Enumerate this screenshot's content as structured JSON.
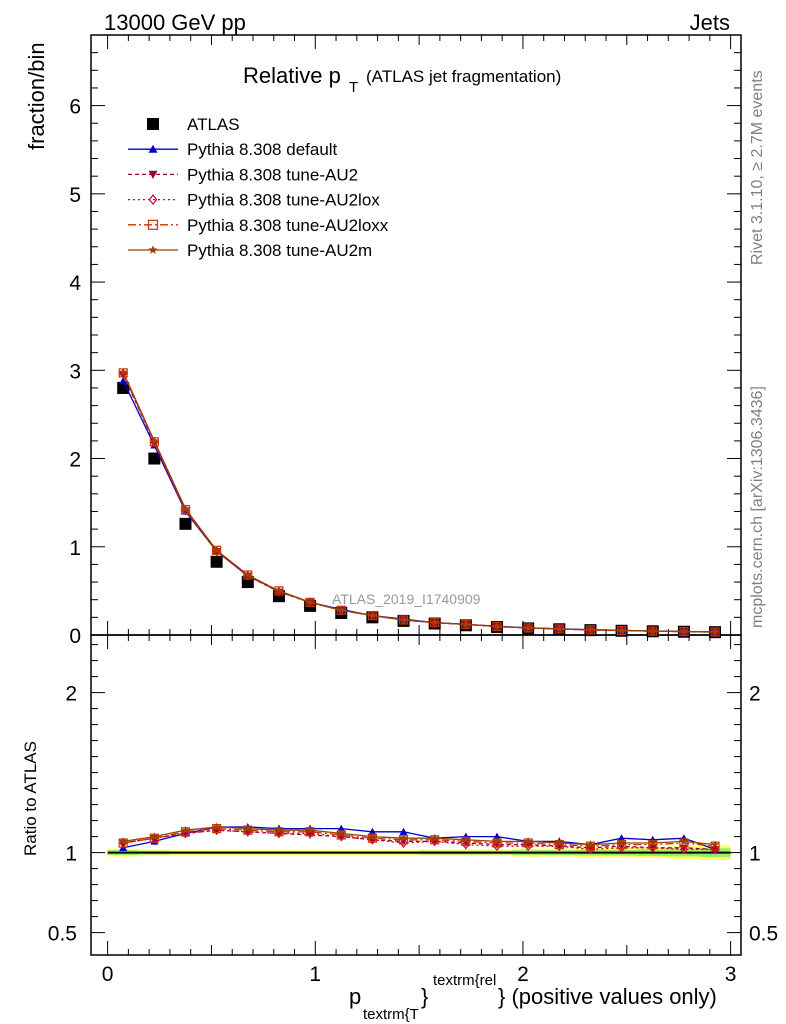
{
  "header": {
    "energy": "13000 GeV pp",
    "category": "Jets",
    "title_main": "Relative p",
    "title_sub": "T",
    "title_paren": "(ATLAS jet fragmentation)",
    "analysis_id": "ATLAS_2019_I1740909",
    "rivet_label": "Rivet 3.1.10, ≥ 2.7M events",
    "mcplots_label": "mcplots.cern.ch [arXiv:1306.3436]"
  },
  "axes": {
    "ylabel_main": "fraction/bin",
    "ylabel_ratio": "Ratio to ATLAS",
    "xlabel_p": "p",
    "xlabel_sub": "textrm{T",
    "xlabel_brace": "}",
    "xlabel_sup": "textrm{rel",
    "xlabel_tail": "} (positive values only)"
  },
  "legend": [
    {
      "label": "ATLAS",
      "color": "#000000",
      "marker": "square",
      "dash": ""
    },
    {
      "label": "Pythia 8.308 default",
      "color": "#0000cc",
      "marker": "triangle-up",
      "dash": ""
    },
    {
      "label": "Pythia 8.308 tune-AU2",
      "color": "#990033",
      "marker": "triangle-down",
      "dash": "4,3"
    },
    {
      "label": "Pythia 8.308 tune-AU2lox",
      "color": "#cc0033",
      "marker": "diamond-open",
      "dash": "2,3"
    },
    {
      "label": "Pythia 8.308 tune-AU2loxx",
      "color": "#cc3300",
      "marker": "square-open",
      "dash": "8,3,2,3"
    },
    {
      "label": "Pythia 8.308 tune-AU2m",
      "color": "#994400",
      "marker": "star",
      "dash": ""
    }
  ],
  "chart_data": [
    {
      "type": "line",
      "panel": "main",
      "xlim": [
        -0.08,
        3.05
      ],
      "ylim": [
        0,
        6.8
      ],
      "x_ticks": [
        0,
        1,
        2,
        3
      ],
      "y_ticks": [
        0,
        1,
        2,
        3,
        4,
        5,
        6
      ],
      "x": [
        0.075,
        0.225,
        0.375,
        0.525,
        0.675,
        0.825,
        0.975,
        1.125,
        1.275,
        1.425,
        1.575,
        1.725,
        1.875,
        2.025,
        2.175,
        2.325,
        2.475,
        2.625,
        2.775,
        2.925
      ],
      "series": [
        {
          "name": "ATLAS",
          "values": [
            2.8,
            2.0,
            1.26,
            0.83,
            0.6,
            0.44,
            0.33,
            0.25,
            0.2,
            0.16,
            0.13,
            0.11,
            0.09,
            0.075,
            0.065,
            0.055,
            0.048,
            0.042,
            0.037,
            0.032
          ]
        },
        {
          "name": "Pythia 8.308 default",
          "values": [
            2.88,
            2.15,
            1.4,
            0.95,
            0.67,
            0.5,
            0.37,
            0.29,
            0.22,
            0.18,
            0.14,
            0.12,
            0.1,
            0.08,
            0.07,
            0.06,
            0.053,
            0.045,
            0.04,
            0.034
          ]
        },
        {
          "name": "Pythia 8.308 tune-AU2",
          "values": [
            2.95,
            2.18,
            1.41,
            0.95,
            0.67,
            0.49,
            0.37,
            0.28,
            0.22,
            0.17,
            0.14,
            0.12,
            0.095,
            0.079,
            0.068,
            0.057,
            0.05,
            0.044,
            0.038,
            0.033
          ]
        },
        {
          "name": "Pythia 8.308 tune-AU2lox",
          "values": [
            2.96,
            2.18,
            1.41,
            0.95,
            0.67,
            0.49,
            0.37,
            0.28,
            0.22,
            0.17,
            0.14,
            0.12,
            0.095,
            0.079,
            0.068,
            0.057,
            0.05,
            0.044,
            0.038,
            0.033
          ]
        },
        {
          "name": "Pythia 8.308 tune-AU2loxx",
          "values": [
            2.97,
            2.19,
            1.42,
            0.96,
            0.68,
            0.5,
            0.37,
            0.28,
            0.22,
            0.17,
            0.14,
            0.12,
            0.096,
            0.08,
            0.069,
            0.058,
            0.051,
            0.044,
            0.039,
            0.034
          ]
        },
        {
          "name": "Pythia 8.308 tune-AU2m",
          "values": [
            2.98,
            2.2,
            1.43,
            0.96,
            0.68,
            0.5,
            0.37,
            0.28,
            0.22,
            0.17,
            0.14,
            0.12,
            0.096,
            0.08,
            0.069,
            0.058,
            0.051,
            0.044,
            0.039,
            0.034
          ]
        }
      ]
    },
    {
      "type": "line",
      "panel": "ratio",
      "xlim": [
        -0.08,
        3.05
      ],
      "ylim": [
        0.36,
        2.36
      ],
      "x_ticks": [
        0,
        1,
        2,
        3
      ],
      "y_ticks": [
        0.5,
        1,
        2
      ],
      "x": [
        0.075,
        0.225,
        0.375,
        0.525,
        0.675,
        0.825,
        0.975,
        1.125,
        1.275,
        1.425,
        1.575,
        1.725,
        1.875,
        2.025,
        2.175,
        2.325,
        2.475,
        2.625,
        2.775,
        2.925
      ],
      "band": {
        "name": "ATLAS uncertainty",
        "lower": [
          0.975,
          0.98,
          0.985,
          0.985,
          0.985,
          0.985,
          0.985,
          0.985,
          0.985,
          0.985,
          0.98,
          0.98,
          0.98,
          0.975,
          0.975,
          0.97,
          0.97,
          0.965,
          0.96,
          0.955
        ],
        "upper": [
          1.025,
          1.02,
          1.015,
          1.015,
          1.015,
          1.015,
          1.015,
          1.015,
          1.015,
          1.015,
          1.02,
          1.02,
          1.02,
          1.025,
          1.025,
          1.03,
          1.03,
          1.035,
          1.04,
          1.045
        ]
      },
      "series": [
        {
          "name": "Pythia 8.308 default",
          "values": [
            1.03,
            1.07,
            1.12,
            1.16,
            1.16,
            1.15,
            1.15,
            1.15,
            1.13,
            1.13,
            1.09,
            1.1,
            1.1,
            1.07,
            1.07,
            1.05,
            1.09,
            1.08,
            1.09,
            1.02
          ]
        },
        {
          "name": "Pythia 8.308 tune-AU2",
          "values": [
            1.06,
            1.09,
            1.12,
            1.14,
            1.13,
            1.12,
            1.11,
            1.1,
            1.08,
            1.07,
            1.07,
            1.06,
            1.05,
            1.05,
            1.04,
            1.03,
            1.04,
            1.03,
            1.03,
            1.02
          ]
        },
        {
          "name": "Pythia 8.308 tune-AU2lox",
          "values": [
            1.06,
            1.09,
            1.12,
            1.14,
            1.13,
            1.12,
            1.12,
            1.1,
            1.08,
            1.06,
            1.07,
            1.05,
            1.04,
            1.04,
            1.04,
            1.02,
            1.03,
            1.03,
            1.02,
            1.02
          ]
        },
        {
          "name": "Pythia 8.308 tune-AU2loxx",
          "values": [
            1.06,
            1.09,
            1.13,
            1.15,
            1.14,
            1.13,
            1.13,
            1.11,
            1.09,
            1.08,
            1.08,
            1.07,
            1.06,
            1.06,
            1.05,
            1.04,
            1.05,
            1.05,
            1.06,
            1.04
          ]
        },
        {
          "name": "Pythia 8.308 tune-AU2m",
          "values": [
            1.07,
            1.1,
            1.14,
            1.16,
            1.15,
            1.14,
            1.14,
            1.12,
            1.1,
            1.09,
            1.09,
            1.08,
            1.07,
            1.07,
            1.06,
            1.05,
            1.06,
            1.06,
            1.07,
            1.05
          ]
        }
      ]
    }
  ]
}
